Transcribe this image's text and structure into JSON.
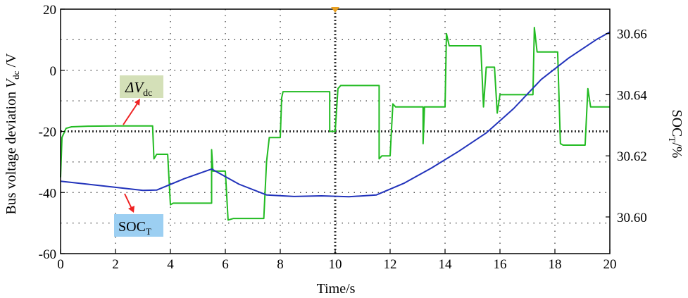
{
  "chart_data": {
    "type": "line",
    "xlabel": "Time/s",
    "ylabel_left": {
      "main": "Bus voltage deviation ",
      "var": "V",
      "sub": "dc",
      "tail": " /V"
    },
    "ylabel_right": {
      "main": "SOC",
      "sub": "T",
      "tail": "/%"
    },
    "x_ticks": [
      "0",
      "2",
      "4",
      "6",
      "8",
      "10",
      "12",
      "14",
      "16",
      "18",
      "20"
    ],
    "y_left_ticks": [
      "20",
      "0",
      "-20",
      "-40",
      "-60"
    ],
    "y_right_ticks": [
      "30.66",
      "30.64",
      "30.62",
      "30.60"
    ],
    "xlim": [
      0,
      20
    ],
    "ylim_left": [
      -60,
      20
    ],
    "ylim_right": [
      30.588,
      30.668
    ],
    "grid": true,
    "annotations": {
      "dv": {
        "symbol": "ΔV",
        "sub": "dc"
      },
      "soc": {
        "main": "SOC",
        "sub": "T"
      }
    },
    "colors": {
      "dv": "#22bb22",
      "soc": "#2233bb",
      "dv_box": "#d4e0b8",
      "soc_box": "#9ccff2",
      "arrow": "#ee2222",
      "marker": "#e8a020"
    },
    "series": [
      {
        "axis": "left",
        "color": "#22bb22",
        "points": [
          [
            0,
            -35
          ],
          [
            0.05,
            -22
          ],
          [
            0.2,
            -19
          ],
          [
            0.4,
            -18.5
          ],
          [
            1.0,
            -18.3
          ],
          [
            2.0,
            -18.2
          ],
          [
            3.35,
            -18.2
          ],
          [
            3.4,
            -29
          ],
          [
            3.5,
            -27.5
          ],
          [
            3.9,
            -27.5
          ],
          [
            4.0,
            -44
          ],
          [
            4.1,
            -43.5
          ],
          [
            5.5,
            -43.5
          ],
          [
            5.5,
            -26
          ],
          [
            5.55,
            -33
          ],
          [
            6.0,
            -33
          ],
          [
            6.1,
            -49
          ],
          [
            6.3,
            -48.5
          ],
          [
            7.4,
            -48.5
          ],
          [
            7.5,
            -30
          ],
          [
            7.6,
            -22
          ],
          [
            8.0,
            -22
          ],
          [
            8.05,
            -9
          ],
          [
            8.1,
            -7
          ],
          [
            9.8,
            -7
          ],
          [
            9.8,
            -20
          ],
          [
            10.0,
            -20
          ],
          [
            10.1,
            -6
          ],
          [
            10.2,
            -5
          ],
          [
            11.6,
            -5
          ],
          [
            11.6,
            -29
          ],
          [
            11.7,
            -28
          ],
          [
            12.0,
            -28
          ],
          [
            12.1,
            -11
          ],
          [
            12.2,
            -12
          ],
          [
            13.2,
            -12
          ],
          [
            13.2,
            -24
          ],
          [
            13.25,
            -12
          ],
          [
            13.4,
            -12
          ],
          [
            14.0,
            -12
          ],
          [
            14.05,
            12
          ],
          [
            14.15,
            8
          ],
          [
            15.3,
            8
          ],
          [
            15.4,
            -12
          ],
          [
            15.5,
            1
          ],
          [
            15.8,
            1
          ],
          [
            15.9,
            -14
          ],
          [
            16.0,
            -8
          ],
          [
            17.2,
            -8
          ],
          [
            17.25,
            14
          ],
          [
            17.35,
            6
          ],
          [
            18.1,
            6
          ],
          [
            18.2,
            -24
          ],
          [
            18.3,
            -24.5
          ],
          [
            19.1,
            -24.5
          ],
          [
            19.2,
            -6
          ],
          [
            19.3,
            -12
          ],
          [
            20,
            -12
          ]
        ]
      },
      {
        "axis": "right",
        "color": "#2233bb",
        "points": [
          [
            0,
            30.6117
          ],
          [
            1.0,
            30.6107
          ],
          [
            2.0,
            30.6097
          ],
          [
            3.0,
            30.6087
          ],
          [
            3.5,
            30.6088
          ],
          [
            4.5,
            30.6125
          ],
          [
            5.5,
            30.6157
          ],
          [
            6.5,
            30.6107
          ],
          [
            7.5,
            30.6072
          ],
          [
            8.5,
            30.6067
          ],
          [
            9.5,
            30.6069
          ],
          [
            10.5,
            30.6066
          ],
          [
            11.5,
            30.6072
          ],
          [
            12.5,
            30.611
          ],
          [
            13.5,
            30.616
          ],
          [
            14.5,
            30.6215
          ],
          [
            15.5,
            30.6275
          ],
          [
            16.5,
            30.6355
          ],
          [
            17.5,
            30.645
          ],
          [
            18.5,
            30.652
          ],
          [
            19.5,
            30.658
          ],
          [
            20,
            30.6605
          ]
        ]
      }
    ]
  }
}
